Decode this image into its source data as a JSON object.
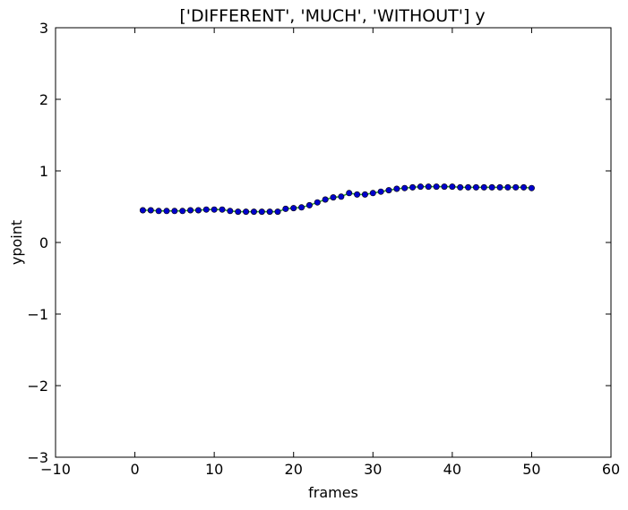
{
  "chart_data": {
    "type": "line",
    "title": "['DIFFERENT', 'MUCH', 'WITHOUT'] y",
    "xlabel": "frames",
    "ylabel": "ypoint",
    "xlim": [
      -10,
      60
    ],
    "ylim": [
      -3,
      3
    ],
    "xticks": [
      -10,
      0,
      10,
      20,
      30,
      40,
      50,
      60
    ],
    "xtick_labels": [
      "−10",
      "0",
      "10",
      "20",
      "30",
      "40",
      "50",
      "60"
    ],
    "yticks": [
      -3,
      -2,
      -1,
      0,
      1,
      2,
      3
    ],
    "ytick_labels": [
      "−3",
      "−2",
      "−1",
      "0",
      "1",
      "2",
      "3"
    ],
    "grid": false,
    "colors": {
      "line": "#2ca02c",
      "marker": "#0000cc",
      "marker_edge": "#000000",
      "axes": "#000000"
    },
    "series": [
      {
        "x": [
          1,
          2,
          3,
          4,
          5,
          6,
          7,
          8,
          9,
          10,
          11,
          12,
          13,
          14,
          15,
          16,
          17,
          18,
          19,
          20,
          21,
          22,
          23,
          24,
          25,
          26,
          27,
          28,
          29,
          30,
          31,
          32,
          33,
          34,
          35,
          36,
          37,
          38,
          39,
          40,
          41,
          42,
          43,
          44,
          45,
          46,
          47,
          48,
          49,
          50
        ],
        "values": [
          0.45,
          0.45,
          0.44,
          0.44,
          0.44,
          0.44,
          0.45,
          0.45,
          0.46,
          0.46,
          0.46,
          0.44,
          0.43,
          0.43,
          0.43,
          0.43,
          0.43,
          0.43,
          0.47,
          0.48,
          0.49,
          0.52,
          0.56,
          0.6,
          0.63,
          0.64,
          0.69,
          0.67,
          0.67,
          0.69,
          0.71,
          0.73,
          0.75,
          0.76,
          0.77,
          0.78,
          0.78,
          0.78,
          0.78,
          0.78,
          0.77,
          0.77,
          0.77,
          0.77,
          0.77,
          0.77,
          0.77,
          0.77,
          0.77,
          0.76
        ]
      }
    ]
  }
}
